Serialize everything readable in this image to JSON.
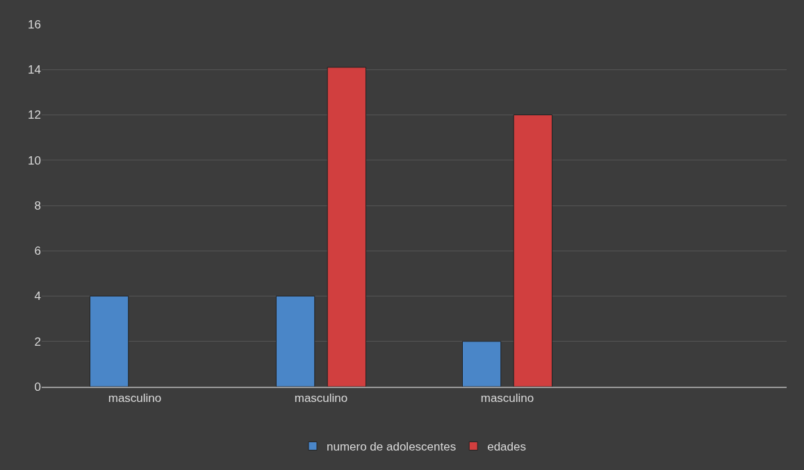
{
  "chart_data": {
    "type": "bar",
    "categories": [
      "masculino",
      "masculino",
      "masculino",
      null
    ],
    "series": [
      {
        "name": "numero de adolescentes",
        "color": "#4a86c8",
        "values": [
          4,
          4,
          2,
          null
        ]
      },
      {
        "name": "edades",
        "color": "#d13f3f",
        "values": [
          null,
          14.1,
          12,
          null
        ]
      }
    ],
    "ylim": [
      0,
      16
    ],
    "yticks": [
      0,
      2,
      4,
      6,
      8,
      10,
      12,
      14,
      16
    ],
    "grid": "y",
    "legend": "bottom"
  }
}
